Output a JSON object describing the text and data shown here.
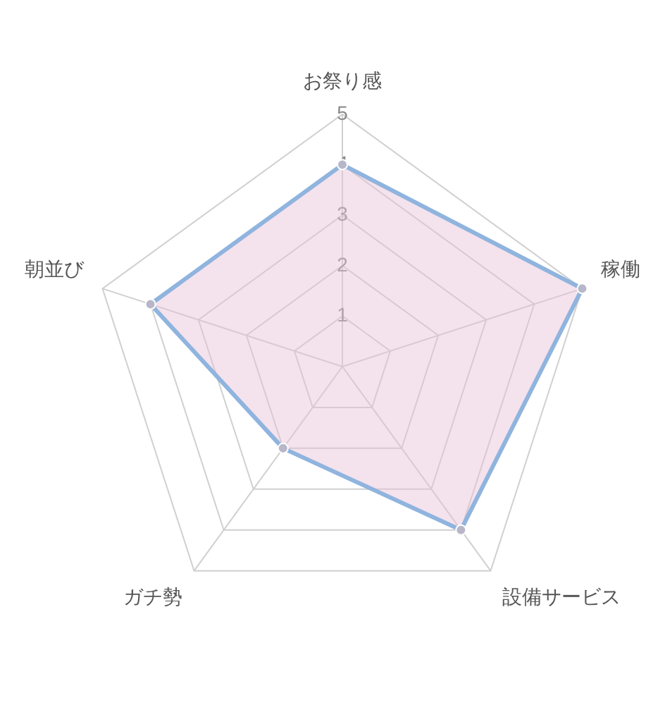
{
  "chart_data": {
    "type": "radar",
    "categories": [
      "お祭り感",
      "稼働",
      "設備サービス",
      "ガチ勢",
      "朝並び"
    ],
    "series": [
      {
        "color": "#8fb4de",
        "values": [
          4,
          5,
          4,
          2,
          4
        ]
      }
    ],
    "ylim": [
      0,
      5
    ],
    "yticks": [
      1,
      2,
      3,
      4,
      5
    ],
    "grid": true,
    "legend": false,
    "marker": "circle"
  }
}
